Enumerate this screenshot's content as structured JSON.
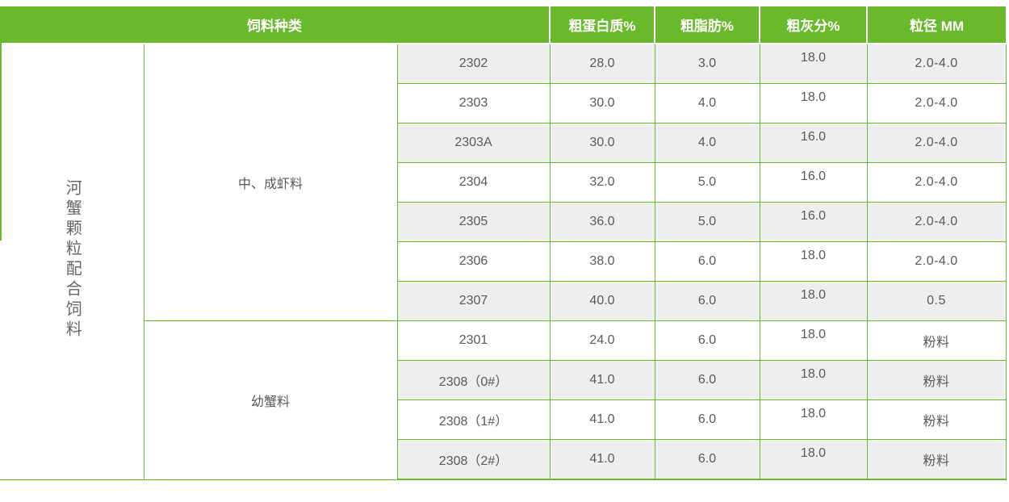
{
  "table": {
    "category_header": "饲料种类",
    "value_headers": [
      "粗蛋白质%",
      "粗脂肪%",
      "粗灰分%",
      "粒径 MM"
    ],
    "category_label": "河蟹颗粒配合饲料",
    "groups": [
      {
        "label": "中、成虾料",
        "rows": [
          {
            "code": "2302",
            "protein": "28.0",
            "fat": "3.0",
            "ash": "18.0",
            "size": "2.0-4.0"
          },
          {
            "code": "2303",
            "protein": "30.0",
            "fat": "4.0",
            "ash": "18.0",
            "size": "2.0-4.0"
          },
          {
            "code": "2303A",
            "protein": "30.0",
            "fat": "4.0",
            "ash": "16.0",
            "size": "2.0-4.0"
          },
          {
            "code": "2304",
            "protein": "32.0",
            "fat": "5.0",
            "ash": "16.0",
            "size": "2.0-4.0"
          },
          {
            "code": "2305",
            "protein": "36.0",
            "fat": "5.0",
            "ash": "16.0",
            "size": "2.0-4.0"
          },
          {
            "code": "2306",
            "protein": "38.0",
            "fat": "6.0",
            "ash": "18.0",
            "size": "2.0-4.0"
          },
          {
            "code": "2307",
            "protein": "40.0",
            "fat": "6.0",
            "ash": "18.0",
            "size": "0.5"
          }
        ]
      },
      {
        "label": "幼蟹料",
        "rows": [
          {
            "code": "2301",
            "protein": "24.0",
            "fat": "6.0",
            "ash": "18.0",
            "size": "粉料"
          },
          {
            "code": "2308（0#）",
            "protein": "41.0",
            "fat": "6.0",
            "ash": "18.0",
            "size": "粉料"
          },
          {
            "code": "2308（1#）",
            "protein": "41.0",
            "fat": "6.0",
            "ash": "18.0",
            "size": "粉料"
          },
          {
            "code": "2308（2#）",
            "protein": "41.0",
            "fat": "6.0",
            "ash": "18.0",
            "size": "粉料"
          }
        ]
      }
    ]
  },
  "colors": {
    "header_green": "#6ab82c",
    "row_stripe": "#eeeeee",
    "header_text": "#ffffff",
    "body_text": "#595959",
    "category_text": "#666666"
  }
}
